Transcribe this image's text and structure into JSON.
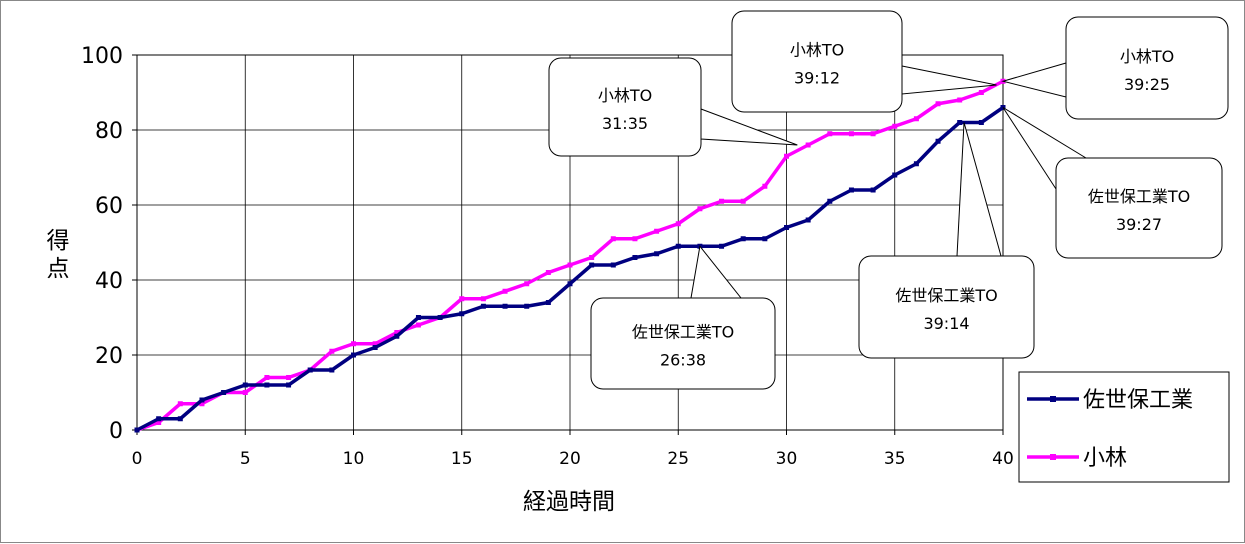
{
  "chart_data": {
    "type": "line",
    "xlabel": "経過時間",
    "ylabel": "得点",
    "xlim": [
      0,
      40
    ],
    "ylim": [
      0,
      100
    ],
    "x_ticks": [
      "0",
      "5",
      "10",
      "15",
      "20",
      "25",
      "30",
      "35",
      "40"
    ],
    "y_ticks": [
      "0",
      "20",
      "40",
      "60",
      "80",
      "100"
    ],
    "grid": true,
    "legend_position": "right",
    "series": [
      {
        "name": "佐世保工業",
        "color": "#000080",
        "points": [
          [
            0,
            0
          ],
          [
            1,
            3
          ],
          [
            2,
            3
          ],
          [
            3,
            8
          ],
          [
            4,
            10
          ],
          [
            5,
            12
          ],
          [
            6,
            12
          ],
          [
            7,
            12
          ],
          [
            8,
            16
          ],
          [
            9,
            16
          ],
          [
            10,
            20
          ],
          [
            11,
            22
          ],
          [
            12,
            25
          ],
          [
            13,
            30
          ],
          [
            14,
            30
          ],
          [
            15,
            31
          ],
          [
            16,
            33
          ],
          [
            17,
            33
          ],
          [
            18,
            33
          ],
          [
            19,
            34
          ],
          [
            20,
            39
          ],
          [
            21,
            44
          ],
          [
            22,
            44
          ],
          [
            23,
            46
          ],
          [
            24,
            47
          ],
          [
            25,
            49
          ],
          [
            26,
            49
          ],
          [
            27,
            49
          ],
          [
            28,
            51
          ],
          [
            29,
            51
          ],
          [
            30,
            54
          ],
          [
            31,
            56
          ],
          [
            32,
            61
          ],
          [
            33,
            64
          ],
          [
            34,
            64
          ],
          [
            35,
            68
          ],
          [
            36,
            71
          ],
          [
            37,
            77
          ],
          [
            38,
            82
          ],
          [
            39,
            82
          ],
          [
            40,
            86
          ]
        ]
      },
      {
        "name": "小林",
        "color": "#ff00ff",
        "points": [
          [
            0,
            0
          ],
          [
            1,
            2
          ],
          [
            2,
            7
          ],
          [
            3,
            7
          ],
          [
            4,
            10
          ],
          [
            5,
            10
          ],
          [
            6,
            14
          ],
          [
            7,
            14
          ],
          [
            8,
            16
          ],
          [
            9,
            21
          ],
          [
            10,
            23
          ],
          [
            11,
            23
          ],
          [
            12,
            26
          ],
          [
            13,
            28
          ],
          [
            14,
            30
          ],
          [
            15,
            35
          ],
          [
            16,
            35
          ],
          [
            17,
            37
          ],
          [
            18,
            39
          ],
          [
            19,
            42
          ],
          [
            20,
            44
          ],
          [
            21,
            46
          ],
          [
            22,
            51
          ],
          [
            23,
            51
          ],
          [
            24,
            53
          ],
          [
            25,
            55
          ],
          [
            26,
            59
          ],
          [
            27,
            61
          ],
          [
            28,
            61
          ],
          [
            29,
            65
          ],
          [
            30,
            73
          ],
          [
            31,
            76
          ],
          [
            32,
            79
          ],
          [
            33,
            79
          ],
          [
            34,
            79
          ],
          [
            35,
            81
          ],
          [
            36,
            83
          ],
          [
            37,
            87
          ],
          [
            38,
            88
          ],
          [
            39,
            90
          ],
          [
            40,
            93
          ]
        ]
      }
    ],
    "annotations": [
      {
        "line1": "小林TO",
        "line2": "31:35",
        "target": [
          30.5,
          76
        ]
      },
      {
        "line1": "小林TO",
        "line2": "39:12",
        "target": [
          39.7,
          92
        ]
      },
      {
        "line1": "小林TO",
        "line2": "39:25",
        "target": [
          40,
          93
        ]
      },
      {
        "line1": "佐世保工業TO",
        "line2": "26:38",
        "target": [
          26,
          49
        ]
      },
      {
        "line1": "佐世保工業TO",
        "line2": "39:14",
        "target": [
          38.2,
          82
        ]
      },
      {
        "line1": "佐世保工業TO",
        "line2": "39:27",
        "target": [
          40,
          86
        ]
      }
    ]
  }
}
